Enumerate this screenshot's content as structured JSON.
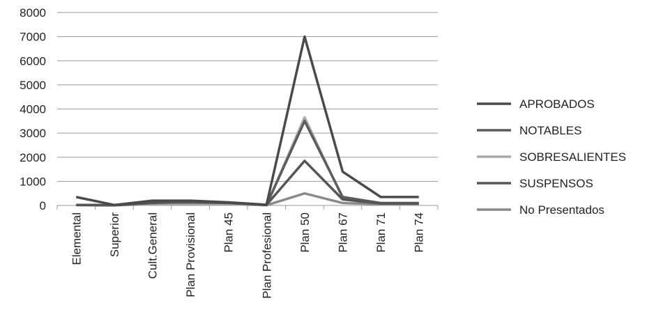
{
  "chart_data": {
    "type": "line",
    "categories": [
      "Elemental",
      "Superior",
      "Cult.General",
      "Plan Provisional",
      "Plan 45",
      "Plan Profesional",
      "Plan 50",
      "Plan 67",
      "Plan 71",
      "Plan 74"
    ],
    "ylim": [
      0,
      8000
    ],
    "yticks": [
      0,
      1000,
      2000,
      3000,
      4000,
      5000,
      6000,
      7000,
      8000
    ],
    "grid": true,
    "legend_position": "right",
    "series": [
      {
        "name": "APROBADOS",
        "color": "#4a4a4a",
        "values": [
          350,
          20,
          200,
          200,
          130,
          30,
          7000,
          1400,
          350,
          350
        ]
      },
      {
        "name": "NOTABLES",
        "color": "#5c5c5c",
        "values": [
          20,
          10,
          120,
          130,
          100,
          20,
          3500,
          350,
          100,
          100
        ]
      },
      {
        "name": "SOBRESALIENTES",
        "color": "#a8a8a8",
        "values": [
          10,
          5,
          50,
          60,
          50,
          10,
          3650,
          300,
          60,
          60
        ]
      },
      {
        "name": "SUSPENSOS",
        "color": "#555555",
        "values": [
          20,
          10,
          100,
          150,
          120,
          25,
          1850,
          250,
          80,
          80
        ]
      },
      {
        "name": "No Presentados",
        "color": "#8a8a8a",
        "values": [
          10,
          5,
          80,
          80,
          60,
          10,
          500,
          100,
          50,
          50
        ]
      }
    ]
  }
}
